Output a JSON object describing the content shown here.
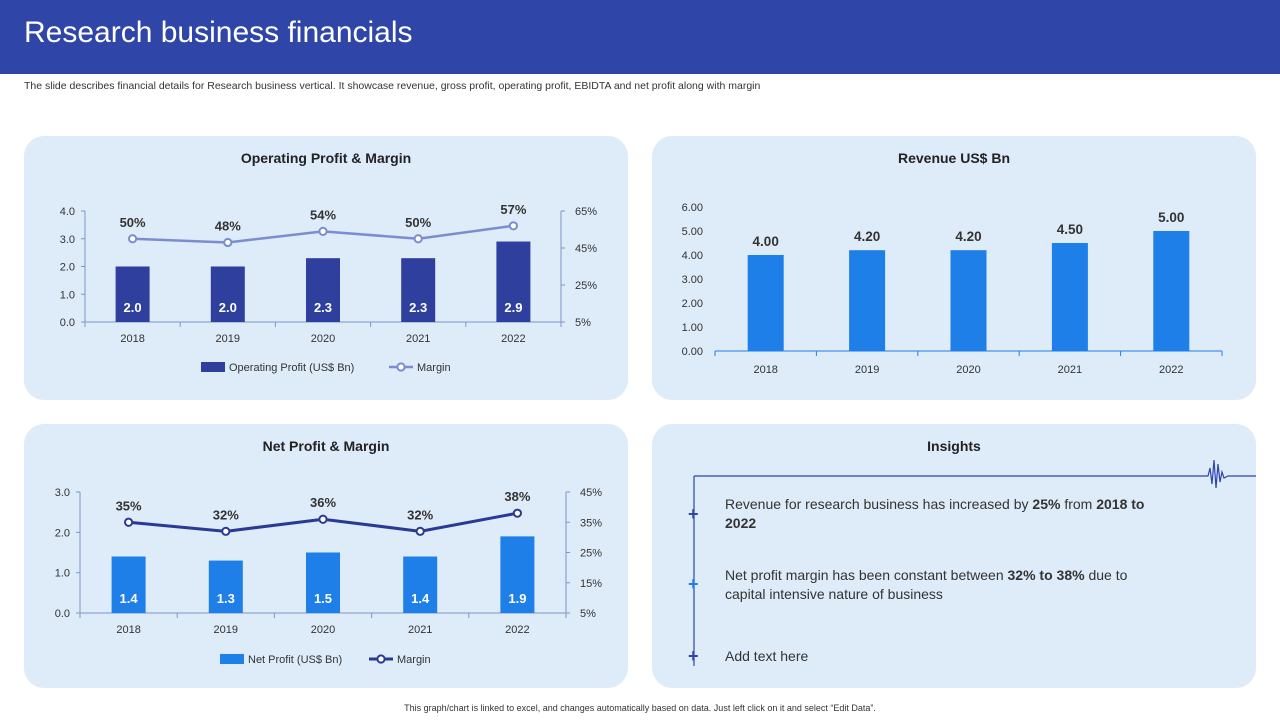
{
  "header": {
    "title": "Research business financials",
    "subtitle": "The slide describes financial details for Research business vertical. It showcase revenue, gross profit, operating profit, EBIDTA and net profit along with margin"
  },
  "footer": "This graph/chart is linked to excel, and changes automatically based on data. Just left click on it and select “Edit Data”.",
  "colors": {
    "header": "#2f45a8",
    "card": "#deebf9",
    "navy_bar": "#2f3f9e",
    "blue_bar": "#1f7fe8",
    "light_line": "#7b8cd0",
    "dark_line": "#283a96"
  },
  "chart_data": [
    {
      "id": "operating",
      "type": "bar+line",
      "title": "Operating Profit & Margin",
      "categories": [
        "2018",
        "2019",
        "2020",
        "2021",
        "2022"
      ],
      "series": [
        {
          "name": "Operating Profit  (US$ Bn)",
          "type": "bar",
          "axis": "left",
          "values": [
            2.0,
            2.0,
            2.3,
            2.3,
            2.9
          ],
          "labels": [
            "2.0",
            "2.0",
            "2.3",
            "2.3",
            "2.9"
          ]
        },
        {
          "name": "Margin",
          "type": "line",
          "axis": "right",
          "values": [
            50,
            48,
            54,
            50,
            57
          ],
          "labels": [
            "50%",
            "48%",
            "54%",
            "50%",
            "57%"
          ]
        }
      ],
      "ylim_left": [
        0,
        4
      ],
      "yticks_left": [
        "0.0",
        "1.0",
        "2.0",
        "3.0",
        "4.0"
      ],
      "ylim_right": [
        5,
        65
      ],
      "yticks_right": [
        "5%",
        "25%",
        "45%",
        "65%"
      ]
    },
    {
      "id": "revenue",
      "type": "bar",
      "title": "Revenue US$ Bn",
      "categories": [
        "2018",
        "2019",
        "2020",
        "2021",
        "2022"
      ],
      "values": [
        4.0,
        4.2,
        4.2,
        4.5,
        5.0
      ],
      "labels": [
        "4.00",
        "4.20",
        "4.20",
        "4.50",
        "5.00"
      ],
      "ylim": [
        0,
        6
      ],
      "yticks": [
        "0.00",
        "1.00",
        "2.00",
        "3.00",
        "4.00",
        "5.00",
        "6.00"
      ]
    },
    {
      "id": "netprofit",
      "type": "bar+line",
      "title": "Net Profit & Margin",
      "categories": [
        "2018",
        "2019",
        "2020",
        "2021",
        "2022"
      ],
      "series": [
        {
          "name": "Net Profit  (US$ Bn)",
          "type": "bar",
          "axis": "left",
          "values": [
            1.4,
            1.3,
            1.5,
            1.4,
            1.9
          ],
          "labels": [
            "1.4",
            "1.3",
            "1.5",
            "1.4",
            "1.9"
          ]
        },
        {
          "name": "Margin",
          "type": "line",
          "axis": "right",
          "values": [
            35,
            32,
            36,
            32,
            38
          ],
          "labels": [
            "35%",
            "32%",
            "36%",
            "32%",
            "38%"
          ]
        }
      ],
      "ylim_left": [
        0,
        3
      ],
      "yticks_left": [
        "0.0",
        "1.0",
        "2.0",
        "3.0"
      ],
      "ylim_right": [
        5,
        45
      ],
      "yticks_right": [
        "5%",
        "15%",
        "25%",
        "35%",
        "45%"
      ]
    }
  ],
  "insights": {
    "title": "Insights",
    "items": [
      {
        "parts": [
          {
            "text": "Revenue for research business has increased by ",
            "bold": false
          },
          {
            "text": "25%",
            "bold": true
          },
          {
            "text": " from ",
            "bold": false
          },
          {
            "text": "2018 to 2022",
            "bold": true
          }
        ]
      },
      {
        "parts": [
          {
            "text": "Net profit margin has been constant between ",
            "bold": false
          },
          {
            "text": "32% to 38%",
            "bold": true
          },
          {
            "text": " due to capital intensive nature of business",
            "bold": false
          }
        ]
      },
      {
        "parts": [
          {
            "text": "Add text here",
            "bold": false
          }
        ]
      }
    ]
  }
}
